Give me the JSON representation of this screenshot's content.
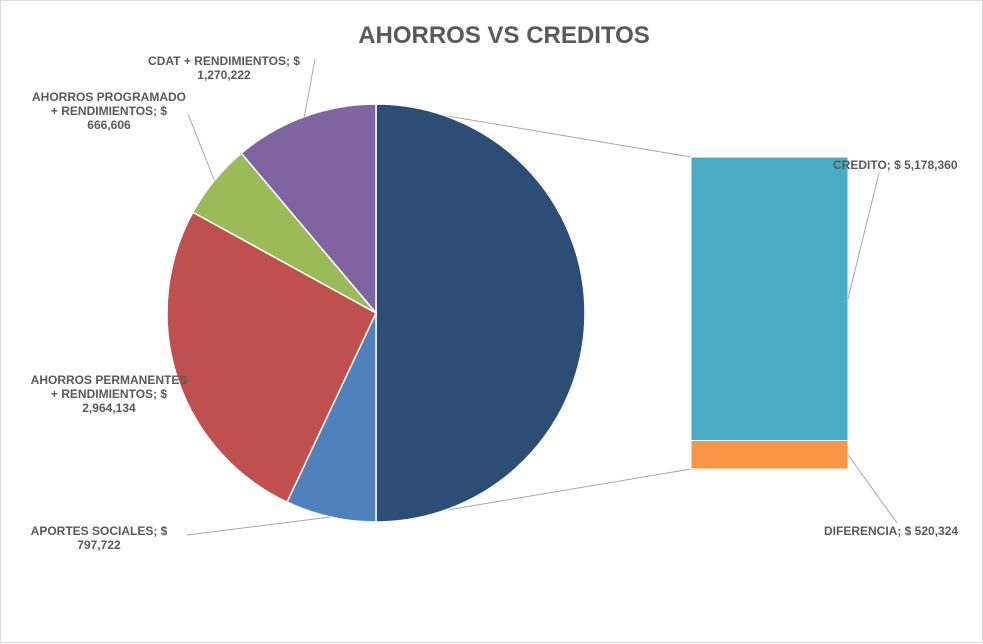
{
  "chart_data": {
    "type": "pie",
    "subtype": "bar-of-pie",
    "title": "AHORROS VS CREDITOS",
    "currency_symbol": "$",
    "slices": [
      {
        "label_lines": [
          "",
          ""
        ],
        "value": 5698684,
        "color": "#2c4d75",
        "is_composite": true
      },
      {
        "label_lines": [
          "APORTES SOCIALES;  $",
          "797,722"
        ],
        "value": 797722,
        "color": "#4f81bd"
      },
      {
        "label_lines": [
          "AHORROS PERMANENTES",
          "+ RENDIMIENTOS;  $",
          "2,964,134"
        ],
        "value": 2964134,
        "color": "#c0504d"
      },
      {
        "label_lines": [
          "AHORROS PROGRAMADO",
          "+ RENDIMIENTOS;  $",
          "666,606"
        ],
        "value": 666606,
        "color": "#9bbb59"
      },
      {
        "label_lines": [
          "CDAT + RENDIMIENTOS;  $",
          "1,270,222"
        ],
        "value": 1270222,
        "color": "#8064a2"
      }
    ],
    "bar_segments": [
      {
        "label": "CREDITO;  $ 5,178,360",
        "value": 5178360,
        "color": "#4bacc6"
      },
      {
        "label": "DIFERENCIA;  $ 520,324",
        "value": 520324,
        "color": "#f79646"
      }
    ]
  }
}
